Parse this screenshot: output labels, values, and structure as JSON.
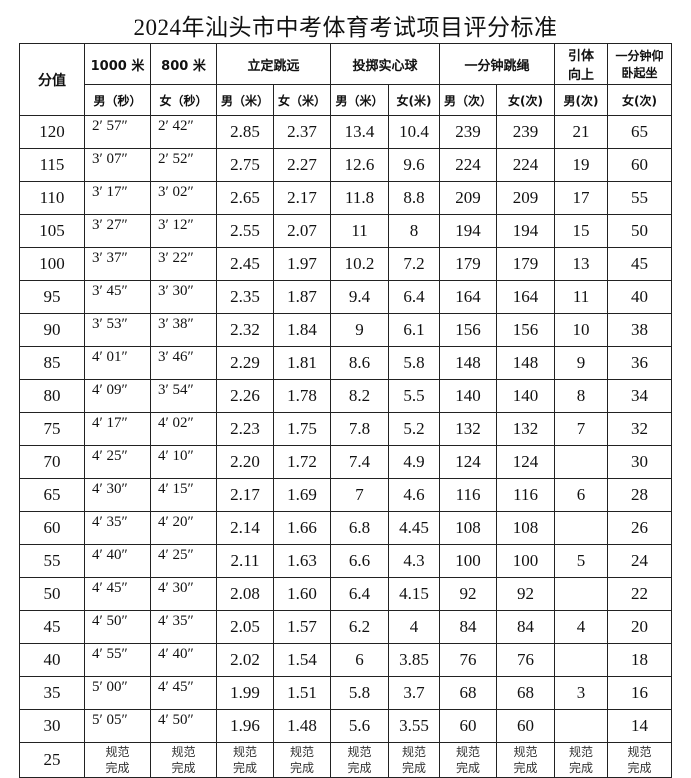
{
  "title": "2024年汕头市中考体育考试项目评分标准",
  "header": {
    "score": "分值",
    "groups": [
      "1000 米",
      "800 米",
      "立定跳远",
      "投掷实心球",
      "一分钟跳绳",
      "引体向上",
      "一分钟仰卧起坐"
    ],
    "sub": [
      "男（秒）",
      "女（秒）",
      "男（米）",
      "女（米）",
      "男（米）",
      "女(米)",
      "男（次）",
      "女(次)",
      "男(次)",
      "女(次)"
    ]
  },
  "rows": [
    [
      "120",
      "2′ 57″",
      "2′ 42″",
      "2.85",
      "2.37",
      "13.4",
      "10.4",
      "239",
      "239",
      "21",
      "65"
    ],
    [
      "115",
      "3′ 07″",
      "2′ 52″",
      "2.75",
      "2.27",
      "12.6",
      "9.6",
      "224",
      "224",
      "19",
      "60"
    ],
    [
      "110",
      "3′ 17″",
      "3′ 02″",
      "2.65",
      "2.17",
      "11.8",
      "8.8",
      "209",
      "209",
      "17",
      "55"
    ],
    [
      "105",
      "3′ 27″",
      "3′ 12″",
      "2.55",
      "2.07",
      "11",
      "8",
      "194",
      "194",
      "15",
      "50"
    ],
    [
      "100",
      "3′ 37″",
      "3′ 22″",
      "2.45",
      "1.97",
      "10.2",
      "7.2",
      "179",
      "179",
      "13",
      "45"
    ],
    [
      "95",
      "3′ 45″",
      "3′ 30″",
      "2.35",
      "1.87",
      "9.4",
      "6.4",
      "164",
      "164",
      "11",
      "40"
    ],
    [
      "90",
      "3′ 53″",
      "3′ 38″",
      "2.32",
      "1.84",
      "9",
      "6.1",
      "156",
      "156",
      "10",
      "38"
    ],
    [
      "85",
      "4′ 01″",
      "3′ 46″",
      "2.29",
      "1.81",
      "8.6",
      "5.8",
      "148",
      "148",
      "9",
      "36"
    ],
    [
      "80",
      "4′ 09″",
      "3′ 54″",
      "2.26",
      "1.78",
      "8.2",
      "5.5",
      "140",
      "140",
      "8",
      "34"
    ],
    [
      "75",
      "4′ 17″",
      "4′ 02″",
      "2.23",
      "1.75",
      "7.8",
      "5.2",
      "132",
      "132",
      "7",
      "32"
    ],
    [
      "70",
      "4′ 25″",
      "4′ 10″",
      "2.20",
      "1.72",
      "7.4",
      "4.9",
      "124",
      "124",
      "",
      "30"
    ],
    [
      "65",
      "4′ 30″",
      "4′ 15″",
      "2.17",
      "1.69",
      "7",
      "4.6",
      "116",
      "116",
      "6",
      "28"
    ],
    [
      "60",
      "4′ 35″",
      "4′ 20″",
      "2.14",
      "1.66",
      "6.8",
      "4.45",
      "108",
      "108",
      "",
      "26"
    ],
    [
      "55",
      "4′ 40″",
      "4′ 25″",
      "2.11",
      "1.63",
      "6.6",
      "4.3",
      "100",
      "100",
      "5",
      "24"
    ],
    [
      "50",
      "4′ 45″",
      "4′ 30″",
      "2.08",
      "1.60",
      "6.4",
      "4.15",
      "92",
      "92",
      "",
      "22"
    ],
    [
      "45",
      "4′ 50″",
      "4′ 35″",
      "2.05",
      "1.57",
      "6.2",
      "4",
      "84",
      "84",
      "4",
      "20"
    ],
    [
      "40",
      "4′ 55″",
      "4′ 40″",
      "2.02",
      "1.54",
      "6",
      "3.85",
      "76",
      "76",
      "",
      "18"
    ],
    [
      "35",
      "5′ 00″",
      "4′ 45″",
      "1.99",
      "1.51",
      "5.8",
      "3.7",
      "68",
      "68",
      "3",
      "16"
    ],
    [
      "30",
      "5′ 05″",
      "4′ 50″",
      "1.96",
      "1.48",
      "5.6",
      "3.55",
      "60",
      "60",
      "",
      "14"
    ]
  ],
  "last_row": {
    "score": "25",
    "note_line1": "规范",
    "note_line2": "完成"
  }
}
